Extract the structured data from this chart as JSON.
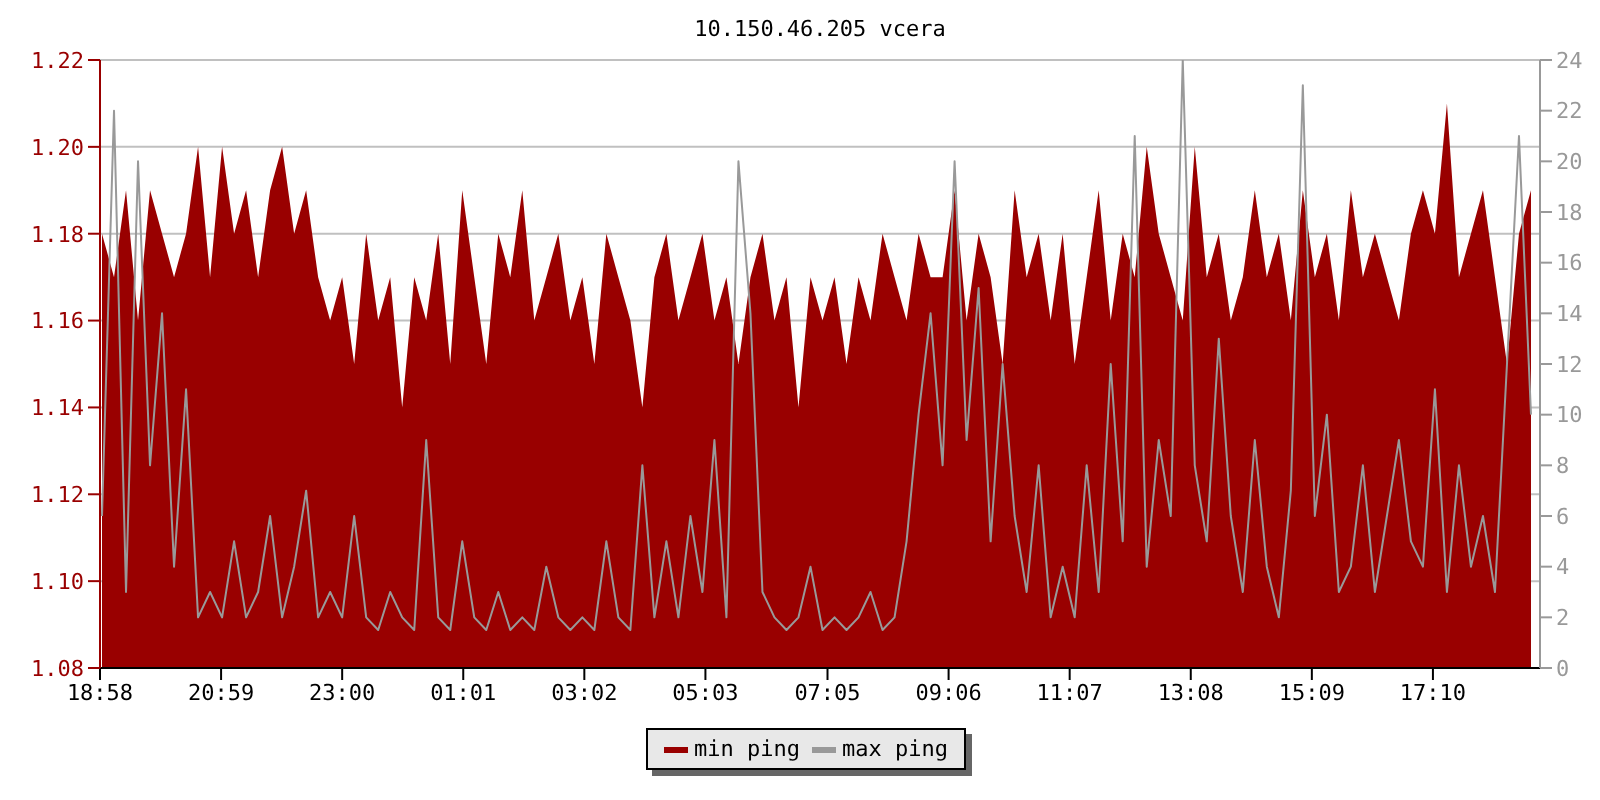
{
  "chart_data": {
    "type": "area",
    "title": "10.150.46.205 vcera",
    "xlim": [
      "--01-01T18:58",
      "--01-02T18:57"
    ],
    "xticks": [
      {
        "value": "--01-01T18:58",
        "label": "18:58"
      },
      {
        "value": "--01-01T20:59",
        "label": "20:59"
      },
      {
        "value": "--01-01T23:00",
        "label": "23:00"
      },
      {
        "value": "--01-02T01:01",
        "label": "01:01"
      },
      {
        "value": "--01-02T03:02",
        "label": "03:02"
      },
      {
        "value": "--01-02T05:03",
        "label": "05:03"
      },
      {
        "value": "--01-02T07:05",
        "label": "07:05"
      },
      {
        "value": "--01-02T09:06",
        "label": "09:06"
      },
      {
        "value": "--01-02T11:07",
        "label": "11:07"
      },
      {
        "value": "--01-02T13:08",
        "label": "13:08"
      },
      {
        "value": "--01-02T15:09",
        "label": "15:09"
      },
      {
        "value": "--01-02T17:10",
        "label": "17:10"
      }
    ],
    "ylim": [
      1.08,
      1.22
    ],
    "yticks": [
      1.08,
      {
        "value": 1.1,
        "label": "1.10"
      },
      1.12,
      1.14,
      1.16,
      1.18,
      {
        "value": 1.2,
        "label": "1.20"
      },
      1.22
    ],
    "y2lim": [
      0,
      24
    ],
    "y2ticks": [
      0,
      2,
      4,
      6,
      8,
      10,
      12,
      14,
      16,
      18,
      20,
      22,
      24
    ],
    "grid": "y",
    "legend": "bottom",
    "x": [
      "--01-01T19:00",
      "--01-01T19:12",
      "--01-01T19:24",
      "--01-01T19:36",
      "--01-01T19:48",
      "--01-01T20:00",
      "--01-01T20:12",
      "--01-01T20:24",
      "--01-01T20:36",
      "--01-01T20:48",
      "--01-01T21:00",
      "--01-01T21:12",
      "--01-01T21:24",
      "--01-01T21:36",
      "--01-01T21:48",
      "--01-01T22:00",
      "--01-01T22:12",
      "--01-01T22:24",
      "--01-01T22:36",
      "--01-01T22:48",
      "--01-01T23:00",
      "--01-01T23:12",
      "--01-01T23:24",
      "--01-01T23:36",
      "--01-01T23:48",
      "--01-02T00:00",
      "--01-02T00:12",
      "--01-02T00:24",
      "--01-02T00:36",
      "--01-02T00:48",
      "--01-02T01:00",
      "--01-02T01:12",
      "--01-02T01:24",
      "--01-02T01:36",
      "--01-02T01:48",
      "--01-02T02:00",
      "--01-02T02:12",
      "--01-02T02:24",
      "--01-02T02:36",
      "--01-02T02:48",
      "--01-02T03:00",
      "--01-02T03:12",
      "--01-02T03:24",
      "--01-02T03:36",
      "--01-02T03:48",
      "--01-02T04:00",
      "--01-02T04:12",
      "--01-02T04:24",
      "--01-02T04:36",
      "--01-02T04:48",
      "--01-02T05:00",
      "--01-02T05:12",
      "--01-02T05:24",
      "--01-02T05:36",
      "--01-02T05:48",
      "--01-02T06:00",
      "--01-02T06:12",
      "--01-02T06:24",
      "--01-02T06:36",
      "--01-02T06:48",
      "--01-02T07:00",
      "--01-02T07:12",
      "--01-02T07:24",
      "--01-02T07:36",
      "--01-02T07:48",
      "--01-02T08:00",
      "--01-02T08:12",
      "--01-02T08:24",
      "--01-02T08:36",
      "--01-02T08:48",
      "--01-02T09:00",
      "--01-02T09:12",
      "--01-02T09:24",
      "--01-02T09:36",
      "--01-02T09:48",
      "--01-02T10:00",
      "--01-02T10:12",
      "--01-02T10:24",
      "--01-02T10:36",
      "--01-02T10:48",
      "--01-02T11:00",
      "--01-02T11:12",
      "--01-02T11:24",
      "--01-02T11:36",
      "--01-02T11:48",
      "--01-02T12:00",
      "--01-02T12:12",
      "--01-02T12:24",
      "--01-02T12:36",
      "--01-02T12:48",
      "--01-02T13:00",
      "--01-02T13:12",
      "--01-02T13:24",
      "--01-02T13:36",
      "--01-02T13:48",
      "--01-02T14:00",
      "--01-02T14:12",
      "--01-02T14:24",
      "--01-02T14:36",
      "--01-02T14:48",
      "--01-02T15:00",
      "--01-02T15:12",
      "--01-02T15:24",
      "--01-02T15:36",
      "--01-02T15:48",
      "--01-02T16:00",
      "--01-02T16:12",
      "--01-02T16:24",
      "--01-02T16:36",
      "--01-02T16:48",
      "--01-02T17:00",
      "--01-02T17:12",
      "--01-02T17:24",
      "--01-02T17:36",
      "--01-02T17:48",
      "--01-02T18:00",
      "--01-02T18:12",
      "--01-02T18:24",
      "--01-02T18:36",
      "--01-02T18:48"
    ],
    "series": [
      {
        "name": "min ping",
        "color": "#990000",
        "values": [
          1.18,
          1.17,
          1.19,
          1.16,
          1.19,
          1.18,
          1.17,
          1.18,
          1.2,
          1.17,
          1.2,
          1.18,
          1.19,
          1.17,
          1.19,
          1.2,
          1.18,
          1.19,
          1.17,
          1.16,
          1.17,
          1.15,
          1.18,
          1.16,
          1.17,
          1.14,
          1.17,
          1.16,
          1.18,
          1.15,
          1.19,
          1.17,
          1.15,
          1.18,
          1.17,
          1.19,
          1.16,
          1.17,
          1.18,
          1.16,
          1.17,
          1.15,
          1.18,
          1.17,
          1.16,
          1.14,
          1.17,
          1.18,
          1.16,
          1.17,
          1.18,
          1.16,
          1.17,
          1.15,
          1.17,
          1.18,
          1.16,
          1.17,
          1.14,
          1.17,
          1.16,
          1.17,
          1.15,
          1.17,
          1.16,
          1.18,
          1.17,
          1.16,
          1.18,
          1.17,
          1.17,
          1.19,
          1.16,
          1.18,
          1.17,
          1.15,
          1.19,
          1.17,
          1.18,
          1.16,
          1.18,
          1.15,
          1.17,
          1.19,
          1.16,
          1.18,
          1.17,
          1.2,
          1.18,
          1.17,
          1.16,
          1.2,
          1.17,
          1.18,
          1.16,
          1.17,
          1.19,
          1.17,
          1.18,
          1.16,
          1.19,
          1.17,
          1.18,
          1.16,
          1.19,
          1.17,
          1.18,
          1.17,
          1.16,
          1.18,
          1.19,
          1.18,
          1.21,
          1.17,
          1.18,
          1.19,
          1.17,
          1.15,
          1.18,
          1.19
        ]
      },
      {
        "name": "max ping",
        "type": "line",
        "axis": "y2",
        "color": "#999999",
        "values": [
          6,
          22,
          3,
          20,
          8,
          14,
          4,
          11,
          2,
          3,
          2,
          5,
          2,
          3,
          6,
          2,
          4,
          7,
          2,
          3,
          2,
          6,
          2,
          1.5,
          3,
          2,
          1.5,
          9,
          2,
          1.5,
          5,
          2,
          1.5,
          3,
          1.5,
          2,
          1.5,
          4,
          2,
          1.5,
          2,
          1.5,
          5,
          2,
          1.5,
          8,
          2,
          5,
          2,
          6,
          3,
          9,
          2,
          20,
          14,
          3,
          2,
          1.5,
          2,
          4,
          1.5,
          2,
          1.5,
          2,
          3,
          1.5,
          2,
          5,
          10,
          14,
          8,
          20,
          9,
          15,
          5,
          12,
          6,
          3,
          8,
          2,
          4,
          2,
          8,
          3,
          12,
          5,
          21,
          4,
          9,
          6,
          24,
          8,
          5,
          13,
          6,
          3,
          9,
          4,
          2,
          7,
          23,
          6,
          10,
          3,
          4,
          8,
          3,
          6,
          9,
          5,
          4,
          11,
          3,
          8,
          4,
          6,
          3,
          12,
          21,
          10
        ]
      }
    ]
  }
}
